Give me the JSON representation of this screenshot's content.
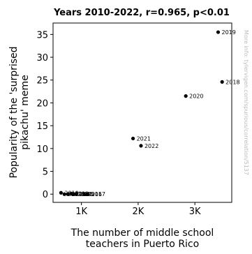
{
  "chart_data": {
    "type": "scatter",
    "title": "Years 2010-2022, r=0.965, p<0.01",
    "xlabel": "The number of middle school teachers in Puerto Rico",
    "ylabel": "Popularity of the 'surprised pikachu' meme",
    "watermark": "More info: tylervigen.com/spurious/correlation/5137",
    "xlim": [
      500,
      3650
    ],
    "ylim": [
      -1.8,
      37.5
    ],
    "x_ticks": [
      {
        "value": 1000,
        "label": "1K"
      },
      {
        "value": 2000,
        "label": "2K"
      },
      {
        "value": 3000,
        "label": "3K"
      }
    ],
    "y_ticks": [
      {
        "value": 0,
        "label": "0"
      },
      {
        "value": 5,
        "label": "5"
      },
      {
        "value": 10,
        "label": "10"
      },
      {
        "value": 15,
        "label": "15"
      },
      {
        "value": 20,
        "label": "20"
      },
      {
        "value": 25,
        "label": "25"
      },
      {
        "value": 30,
        "label": "30"
      },
      {
        "value": 35,
        "label": "35"
      }
    ],
    "grid": false,
    "marker_color": "#000000",
    "points": [
      {
        "label": "2010",
        "x": 640,
        "y": 0.3
      },
      {
        "label": "2011",
        "x": 700,
        "y": 0.0
      },
      {
        "label": "2012",
        "x": 760,
        "y": 0.0
      },
      {
        "label": "2013",
        "x": 820,
        "y": 0.1
      },
      {
        "label": "2014",
        "x": 870,
        "y": 0.0
      },
      {
        "label": "2015",
        "x": 910,
        "y": 0.0
      },
      {
        "label": "2016",
        "x": 1050,
        "y": 0.0
      },
      {
        "label": "2017",
        "x": 1110,
        "y": 0.0
      },
      {
        "label": "2018",
        "x": 3480,
        "y": 24.6
      },
      {
        "label": "2019",
        "x": 3410,
        "y": 35.5
      },
      {
        "label": "2020",
        "x": 2840,
        "y": 21.5
      },
      {
        "label": "2021",
        "x": 1910,
        "y": 12.2
      },
      {
        "label": "2022",
        "x": 2050,
        "y": 10.6
      }
    ]
  }
}
